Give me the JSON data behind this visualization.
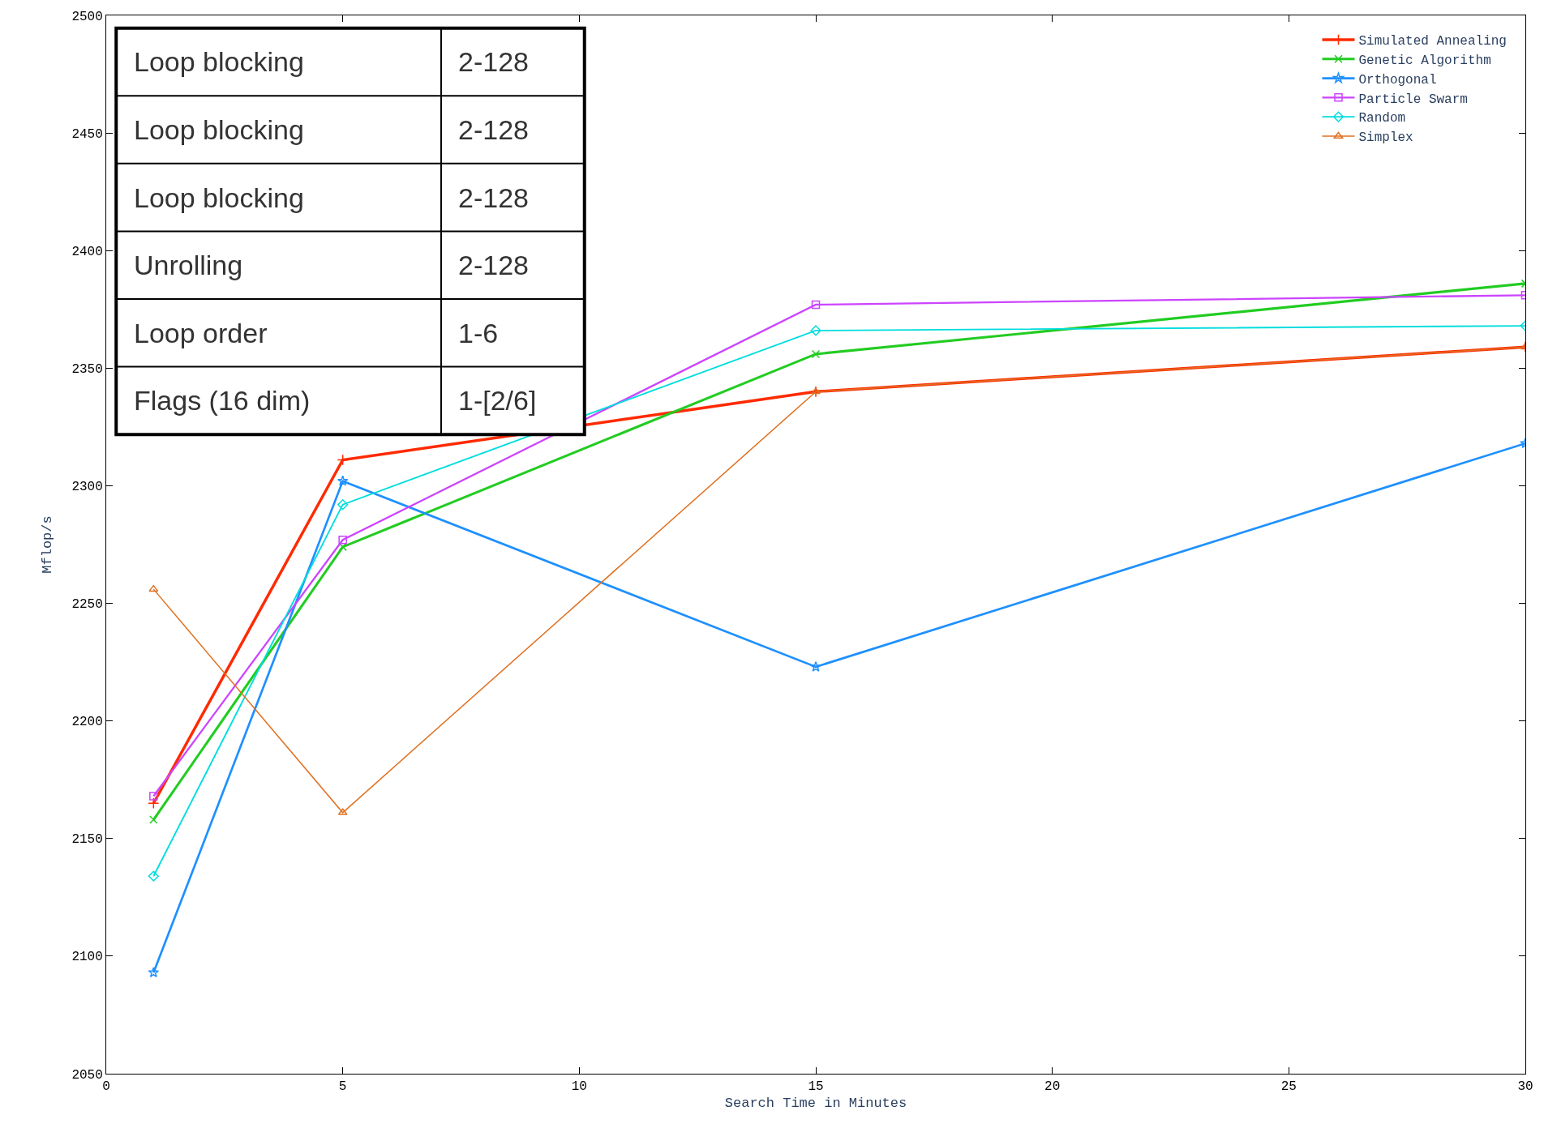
{
  "chart_data": {
    "type": "line",
    "xlabel": "Search Time in Minutes",
    "ylabel": "Mflop/s",
    "x": [
      1,
      5,
      15,
      30
    ],
    "xlim": [
      0,
      30
    ],
    "xticks": [
      0,
      5,
      10,
      15,
      20,
      25,
      30
    ],
    "ylim": [
      2050,
      2500
    ],
    "yticks": [
      2050,
      2100,
      2150,
      2200,
      2250,
      2300,
      2350,
      2400,
      2450,
      2500
    ],
    "legend": "top right",
    "series": [
      {
        "name": "Simulated Annealing",
        "color": "#ff2a00",
        "marker": "cross",
        "values": [
          2165,
          2311,
          2340,
          2359
        ]
      },
      {
        "name": "Genetic Algorithm",
        "color": "#22cc22",
        "marker": "x",
        "values": [
          2158,
          2274,
          2356,
          2386
        ]
      },
      {
        "name": "Orthogonal",
        "color": "#1e90ff",
        "marker": "star",
        "values": [
          2093,
          2302,
          2223,
          2318
        ]
      },
      {
        "name": "Particle Swarm",
        "color": "#cc44ff",
        "marker": "square",
        "values": [
          2168,
          2277,
          2377,
          2381
        ]
      },
      {
        "name": "Random",
        "color": "#00dddd",
        "marker": "diamond",
        "values": [
          2134,
          2292,
          2366,
          2368
        ]
      },
      {
        "name": "Simplex",
        "color": "#e07020",
        "marker": "triangle",
        "values": [
          2256,
          2161,
          2340,
          2359
        ]
      }
    ],
    "annotations": [
      "Loop blocking",
      "2-128",
      "Loop blocking",
      "2-128",
      "Loop blocking",
      "2-128",
      "Unrolling",
      "2-128",
      "Loop order",
      "1-6",
      "Flags (16 dim)",
      "1-[2/6]"
    ]
  }
}
